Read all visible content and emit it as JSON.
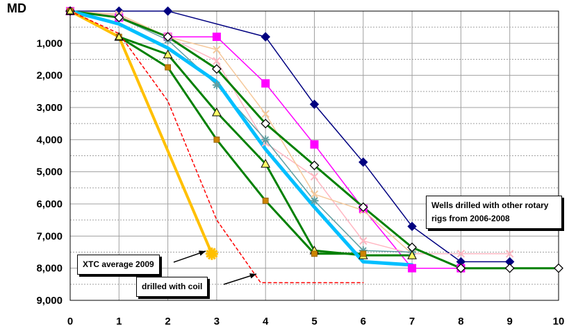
{
  "chart_data": {
    "type": "line",
    "ylabel": "MD",
    "xlim": [
      0,
      10
    ],
    "ylim": [
      0,
      9000
    ],
    "y_inverted": true,
    "grid": true,
    "x_ticks": [
      "0",
      "1",
      "2",
      "3",
      "4",
      "5",
      "6",
      "7",
      "8",
      "9",
      "10"
    ],
    "y_ticks": [
      "1,000",
      "2,000",
      "3,000",
      "4,000",
      "5,000",
      "6,000",
      "7,000",
      "8,000",
      "9,000"
    ],
    "y_tick_values": [
      1000,
      2000,
      3000,
      4000,
      5000,
      6000,
      7000,
      8000,
      9000
    ],
    "series": [
      {
        "color": "#000080",
        "marker": "diamond",
        "width": 1.5,
        "dash": "",
        "x": [
          0,
          1,
          2,
          4,
          4,
          5,
          6,
          7,
          8,
          9
        ],
        "y": [
          0,
          0,
          0,
          800,
          800,
          2900,
          4700,
          6700,
          7800,
          7800
        ]
      },
      {
        "color": "#FF00FF",
        "marker": "square",
        "width": 1.5,
        "dash": "",
        "x": [
          0,
          1,
          2,
          3,
          4,
          5,
          6,
          7,
          8
        ],
        "y": [
          0,
          200,
          800,
          800,
          2250,
          4150,
          6150,
          8000,
          8000
        ]
      },
      {
        "color": "#008000",
        "marker": "open-diamond",
        "width": 3,
        "dash": "",
        "x": [
          0,
          1,
          2,
          3,
          4,
          5,
          6,
          7,
          8,
          9,
          10
        ],
        "y": [
          0,
          200,
          800,
          1800,
          3500,
          4800,
          6100,
          7350,
          8000,
          8000,
          8000
        ]
      },
      {
        "color": "#FFB6C1",
        "marker": "x",
        "width": 1.5,
        "dash": "",
        "x": [
          0,
          1,
          2,
          3,
          4,
          5,
          6,
          7,
          8,
          9
        ],
        "y": [
          0,
          150,
          800,
          1550,
          4100,
          5150,
          7150,
          7550,
          7550,
          7550
        ]
      },
      {
        "color": "#F5C89A",
        "marker": "x",
        "width": 1.5,
        "dash": "",
        "x": [
          0,
          1,
          2,
          3,
          4,
          5,
          6,
          7
        ],
        "y": [
          0,
          100,
          800,
          1200,
          3200,
          5700,
          6200,
          7550
        ]
      },
      {
        "color": "#5F9EA0",
        "marker": "star",
        "width": 1.5,
        "dash": "",
        "x": [
          0,
          1,
          2,
          3,
          4,
          5,
          6,
          7
        ],
        "y": [
          0,
          200,
          900,
          2300,
          4000,
          5900,
          7450,
          7500
        ]
      },
      {
        "color": "#00BFFF",
        "marker": "none",
        "width": 5,
        "dash": "",
        "x": [
          0,
          1,
          2,
          3,
          4,
          5,
          6,
          7
        ],
        "y": [
          0,
          400,
          1150,
          2200,
          4300,
          6100,
          7800,
          7900
        ]
      },
      {
        "color": "#008000",
        "marker": "triangle",
        "width": 3,
        "dash": "",
        "x": [
          0,
          1,
          2,
          3,
          4,
          5,
          6,
          7
        ],
        "y": [
          0,
          800,
          1350,
          3150,
          4750,
          7450,
          7600,
          7600
        ]
      },
      {
        "color": "#008000",
        "marker": "small-square",
        "width": 3,
        "dash": "",
        "x": [
          0,
          1,
          2,
          3,
          4,
          5,
          6
        ],
        "y": [
          0,
          800,
          1750,
          4000,
          5900,
          7550,
          7550
        ]
      },
      {
        "color": "#FFC000",
        "marker": "star",
        "width": 4,
        "dash": "",
        "x": [
          0,
          1,
          2.9
        ],
        "y": [
          0,
          800,
          7550
        ]
      },
      {
        "color": "#FF0000",
        "marker": "none",
        "width": 1.5,
        "dash": "4,4",
        "x": [
          0,
          1,
          2,
          3,
          3.9,
          3.9,
          6
        ],
        "y": [
          0,
          700,
          2800,
          6500,
          8450,
          8450,
          8450
        ]
      }
    ],
    "annotations": [
      {
        "text": "Wells drilled with other rotary rigs from 2006-2008"
      },
      {
        "text": "XTC average 2009"
      },
      {
        "text": "drilled with coil"
      }
    ]
  }
}
